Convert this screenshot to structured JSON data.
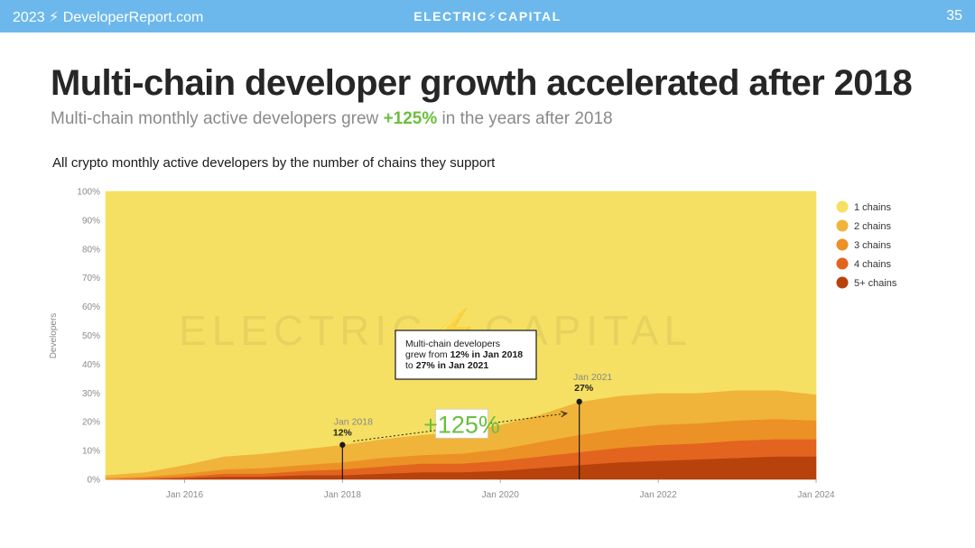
{
  "header": {
    "left": "2023 ⚡ DeveloperReport.com",
    "center": "ELECTRIC⚡CAPITAL",
    "page_number": "35"
  },
  "slide": {
    "title": "Multi-chain developer growth accelerated after 2018",
    "subtitle_before": "Multi-chain monthly active developers grew ",
    "subtitle_highlight": "+125%",
    "subtitle_after": " in the years after 2018",
    "highlight_color": "#6bbf3f"
  },
  "chart_data": {
    "type": "area",
    "stacked": true,
    "normalized_percent": true,
    "title": "All crypto monthly active developers by the number of chains they support",
    "ylabel": "Developers",
    "xlabel": "",
    "ylim": [
      0,
      100
    ],
    "y_ticks": [
      "0%",
      "10%",
      "20%",
      "30%",
      "40%",
      "50%",
      "60%",
      "70%",
      "80%",
      "90%",
      "100%"
    ],
    "x_ticks": [
      "Jan 2016",
      "Jan 2018",
      "Jan 2020",
      "Jan 2022",
      "Jan 2024"
    ],
    "x": [
      "Jan 2015",
      "Jul 2015",
      "Jan 2016",
      "Jul 2016",
      "Jan 2017",
      "Jul 2017",
      "Jan 2018",
      "Jul 2018",
      "Jan 2019",
      "Jul 2019",
      "Jan 2020",
      "Jul 2020",
      "Jan 2021",
      "Jul 2021",
      "Jan 2022",
      "Jul 2022",
      "Jan 2023",
      "Jul 2023",
      "Jan 2024"
    ],
    "series": [
      {
        "name": "5+ chains",
        "color": "#b8420c",
        "values": [
          0,
          0,
          0.5,
          1,
          1,
          1.5,
          1.5,
          2,
          2.5,
          2.5,
          3,
          4,
          5,
          6,
          6.5,
          7,
          7.5,
          8,
          8
        ]
      },
      {
        "name": "4 chains",
        "color": "#e2641f",
        "values": [
          0,
          0.5,
          0.5,
          1,
          1,
          1.5,
          2,
          2.5,
          3,
          3,
          3.5,
          4,
          4.5,
          5,
          5.5,
          5.5,
          6,
          6,
          6
        ]
      },
      {
        "name": "3 chains",
        "color": "#ec9126",
        "values": [
          0.5,
          0.5,
          1,
          1.5,
          2,
          2,
          2.5,
          3,
          3,
          3.5,
          4,
          5,
          6,
          6.5,
          7,
          7,
          7,
          7,
          6.5
        ]
      },
      {
        "name": "2 chains",
        "color": "#f0b43a",
        "values": [
          1,
          1.5,
          3,
          4.5,
          5,
          5.5,
          6,
          6.5,
          7,
          7.5,
          8.5,
          9.5,
          11.5,
          11.5,
          11,
          10.5,
          10.5,
          10,
          9
        ]
      },
      {
        "name": "1 chains",
        "color": "#f5e063",
        "values": [
          98.5,
          97.5,
          95,
          92,
          91,
          89.5,
          88,
          86,
          84.5,
          83.5,
          81,
          77.5,
          73,
          71,
          70,
          70,
          69,
          69,
          70.5
        ]
      }
    ],
    "legend_order": [
      "1 chains",
      "2 chains",
      "3 chains",
      "4 chains",
      "5+ chains"
    ],
    "legend_position": "right",
    "watermark": "ELECTRIC⚡CAPITAL",
    "annotations": {
      "point_2018": {
        "date_label": "Jan 2018",
        "value_label": "12%",
        "x": "Jan 2018",
        "y": 12
      },
      "point_2021": {
        "date_label": "Jan 2021",
        "value_label": "27%",
        "x": "Jan 2021",
        "y": 27
      },
      "growth_label": "+125%",
      "callout_lines": [
        [
          {
            "text": "Multi-chain developers",
            "bold": false
          }
        ],
        [
          {
            "text": "grew from ",
            "bold": false
          },
          {
            "text": "12% in Jan 2018",
            "bold": true
          }
        ],
        [
          {
            "text": "to ",
            "bold": false
          },
          {
            "text": "27% in Jan 2021",
            "bold": true
          }
        ]
      ]
    }
  }
}
